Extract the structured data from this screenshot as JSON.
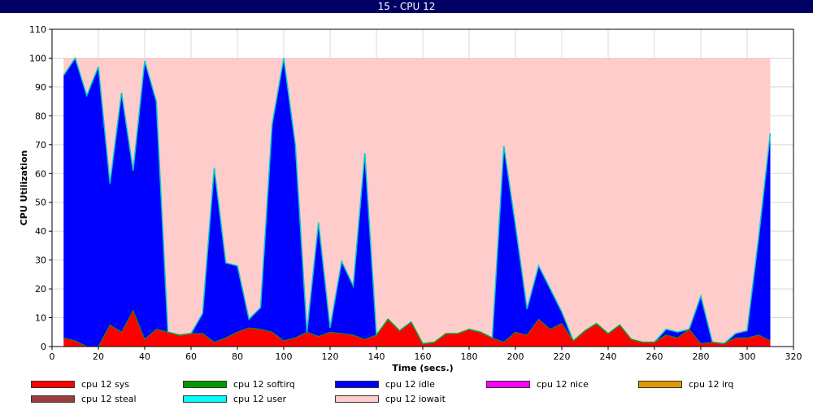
{
  "window": {
    "title": "15 - CPU 12"
  },
  "chart_data": {
    "type": "area",
    "stacked": true,
    "xlabel": "Time (secs.)",
    "ylabel": "CPU Utilization",
    "xlim": [
      0,
      320
    ],
    "ylim": [
      0,
      110
    ],
    "x_ticks": [
      0,
      20,
      40,
      60,
      80,
      100,
      120,
      140,
      160,
      180,
      200,
      220,
      240,
      260,
      280,
      300,
      320
    ],
    "y_ticks": [
      0,
      10,
      20,
      30,
      40,
      50,
      60,
      70,
      80,
      90,
      100,
      110
    ],
    "grid": true,
    "legend_position": "bottom",
    "x": [
      5,
      10,
      15,
      20,
      25,
      30,
      35,
      40,
      45,
      50,
      55,
      60,
      65,
      70,
      75,
      80,
      85,
      90,
      95,
      100,
      105,
      110,
      115,
      120,
      125,
      130,
      135,
      140,
      145,
      150,
      155,
      160,
      165,
      170,
      175,
      180,
      185,
      190,
      195,
      200,
      205,
      210,
      215,
      220,
      225,
      230,
      235,
      240,
      245,
      250,
      255,
      260,
      265,
      270,
      275,
      280,
      285,
      290,
      295,
      300,
      305,
      310
    ],
    "series": [
      {
        "name": "cpu 12 sys",
        "color": "#ff0000",
        "values": [
          3,
          2,
          0,
          0,
          7.5,
          5,
          12.5,
          2.5,
          6,
          5,
          4,
          4.5,
          4.5,
          1.5,
          3,
          5,
          6.5,
          6,
          5,
          2,
          3,
          5,
          3.5,
          5,
          4.5,
          4,
          2.5,
          4,
          9.5,
          5.5,
          8.5,
          1,
          1.5,
          4.5,
          4.5,
          6,
          5,
          3,
          1.5,
          5,
          4,
          9.5,
          6,
          8,
          2,
          5.5,
          8,
          4.5,
          7.5,
          2.5,
          1.5,
          1.5,
          4,
          3,
          6,
          1,
          1.5,
          1,
          3,
          3,
          4,
          2
        ]
      },
      {
        "name": "cpu 12 softirq",
        "color": "#009900",
        "values": [
          0,
          0,
          0,
          0,
          0,
          0,
          0,
          0,
          0,
          0,
          0,
          0,
          0,
          0,
          0,
          0,
          0,
          0,
          0,
          0,
          0,
          0,
          0,
          0,
          0,
          0,
          0,
          0,
          0,
          0,
          0,
          0,
          0,
          0,
          0,
          0,
          0,
          0,
          0,
          0,
          0,
          0,
          0,
          0,
          0,
          0,
          0,
          0,
          0,
          0,
          0,
          0,
          0,
          0,
          0,
          0,
          0,
          0,
          0,
          0,
          0,
          0
        ]
      },
      {
        "name": "cpu 12 idle",
        "color": "#0000ff",
        "values": [
          91,
          98,
          87,
          97,
          49,
          83,
          48.5,
          96.5,
          79,
          0,
          0,
          0,
          7,
          60.5,
          26,
          23,
          3,
          7.5,
          72,
          98,
          67,
          0,
          39.5,
          1.5,
          25,
          17,
          64.5,
          0,
          0,
          0,
          0,
          0,
          0,
          0,
          0,
          0,
          0,
          0,
          68,
          37,
          9,
          18.5,
          14,
          4,
          0,
          0,
          0,
          0,
          0,
          0,
          0,
          0,
          2,
          2,
          0,
          16.5,
          0,
          0,
          1.5,
          2.5,
          34,
          72
        ]
      },
      {
        "name": "cpu 12 nice",
        "color": "#ff00ff",
        "values": [
          0,
          0,
          0,
          0,
          0,
          0,
          0,
          0,
          0,
          0,
          0,
          0,
          0,
          0,
          0,
          0,
          0,
          0,
          0,
          0,
          0,
          0,
          0,
          0,
          0,
          0,
          0,
          0,
          0,
          0,
          0,
          0,
          0,
          0,
          0,
          0,
          0,
          0,
          0,
          0,
          0,
          0,
          0,
          0,
          0,
          0,
          0,
          0,
          0,
          0,
          0,
          0,
          0,
          0,
          0,
          0,
          0,
          0,
          0,
          0,
          0,
          0
        ]
      },
      {
        "name": "cpu 12 irq",
        "color": "#e09900",
        "values": [
          0,
          0,
          0,
          0,
          0,
          0,
          0,
          0,
          0,
          0,
          0,
          0,
          0,
          0,
          0,
          0,
          0,
          0,
          0,
          0,
          0,
          0,
          0,
          0,
          0,
          0,
          0,
          0,
          0,
          0,
          0,
          0,
          0,
          0,
          0,
          0,
          0,
          0,
          0,
          0,
          0,
          0,
          0,
          0,
          0,
          0,
          0,
          0,
          0,
          0,
          0,
          0,
          0,
          0,
          0,
          0,
          0,
          0,
          0,
          0,
          0,
          0
        ]
      },
      {
        "name": "cpu 12 steal",
        "color": "#a03c3c",
        "values": [
          0,
          0,
          0,
          0,
          0,
          0,
          0,
          0,
          0,
          0,
          0,
          0,
          0,
          0,
          0,
          0,
          0,
          0,
          0,
          0,
          0,
          0,
          0,
          0,
          0,
          0,
          0,
          0,
          0,
          0,
          0,
          0,
          0,
          0,
          0,
          0,
          0,
          0,
          0,
          0,
          0,
          0,
          0,
          0,
          0,
          0,
          0,
          0,
          0,
          0,
          0,
          0,
          0,
          0,
          0,
          0,
          0,
          0,
          0,
          0,
          0,
          0
        ]
      },
      {
        "name": "cpu 12 user",
        "color": "#00ffff",
        "values": [
          0,
          0,
          0,
          0,
          0,
          0,
          0,
          0,
          0,
          0,
          0,
          0,
          0,
          0,
          0,
          0,
          0,
          0,
          0,
          0,
          0,
          0,
          0,
          0,
          0,
          0,
          0,
          0,
          0,
          0,
          0,
          0,
          0,
          0,
          0,
          0,
          0,
          0,
          0,
          0,
          0,
          0,
          0,
          0,
          0,
          0,
          0,
          0,
          0,
          0,
          0,
          0,
          0,
          0,
          0,
          0,
          0,
          0,
          0,
          0,
          0,
          0
        ]
      },
      {
        "name": "cpu 12 iowait",
        "color": "#ffcccc",
        "values": [
          6,
          0,
          13,
          3,
          43.5,
          12,
          39,
          1,
          15,
          95,
          96,
          95.5,
          88.5,
          38,
          71,
          72,
          90.5,
          86.5,
          23,
          0,
          30,
          95,
          57,
          93.5,
          70.5,
          79,
          33,
          96,
          90.5,
          94.5,
          91.5,
          99,
          98.5,
          95.5,
          95.5,
          94,
          95,
          97,
          30.5,
          58,
          87,
          72,
          80,
          88,
          98,
          94.5,
          92,
          95.5,
          92.5,
          97.5,
          98.5,
          98.5,
          94,
          95,
          94,
          82.5,
          98.5,
          99,
          95.5,
          94.5,
          62,
          26
        ]
      }
    ]
  }
}
